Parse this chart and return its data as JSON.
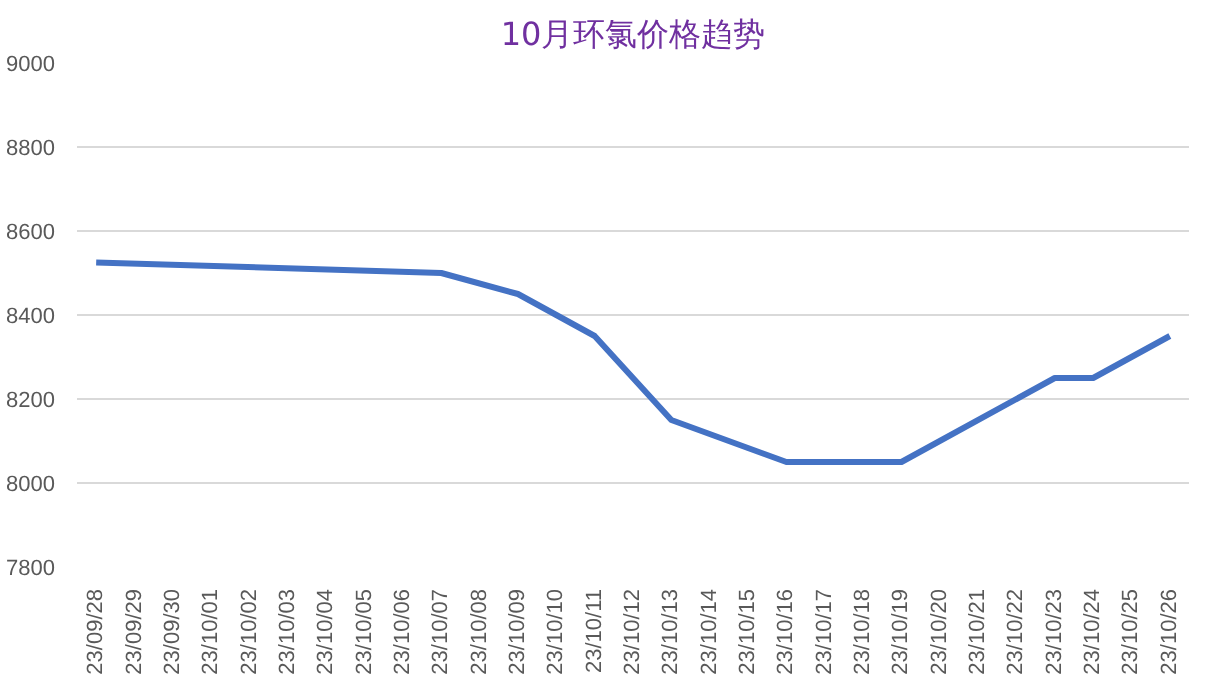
{
  "chart_data": {
    "type": "line",
    "title": "10月环氯价格趋势",
    "categories": [
      "23/09/28",
      "23/09/29",
      "23/09/30",
      "23/10/01",
      "23/10/02",
      "23/10/03",
      "23/10/04",
      "23/10/05",
      "23/10/06",
      "23/10/07",
      "23/10/08",
      "23/10/09",
      "23/10/10",
      "23/10/11",
      "23/10/12",
      "23/10/13",
      "23/10/14",
      "23/10/15",
      "23/10/16",
      "23/10/17",
      "23/10/18",
      "23/10/19",
      "23/10/20",
      "23/10/21",
      "23/10/22",
      "23/10/23",
      "23/10/24",
      "23/10/25",
      "23/10/26"
    ],
    "series": [
      {
        "color": "#4472c4",
        "values": [
          8525,
          null,
          null,
          null,
          null,
          null,
          null,
          null,
          null,
          8500,
          null,
          8450,
          8400,
          8350,
          null,
          8150,
          null,
          null,
          8050,
          8050,
          8050,
          8050,
          null,
          null,
          null,
          8250,
          8250,
          null,
          8350
        ]
      }
    ],
    "ylim": [
      7800,
      9000
    ],
    "yticks": [
      7800,
      8000,
      8200,
      8400,
      8600,
      8800,
      9000
    ],
    "grid": "y"
  }
}
